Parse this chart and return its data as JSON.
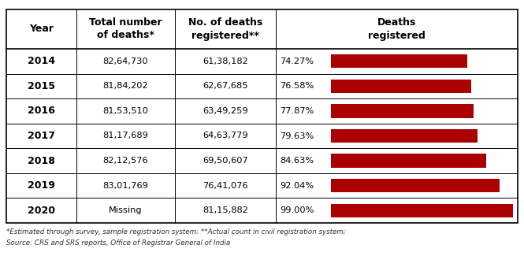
{
  "years": [
    "2014",
    "2015",
    "2016",
    "2017",
    "2018",
    "2019",
    "2020"
  ],
  "total_deaths": [
    "82,64,730",
    "81,84,202",
    "81,53,510",
    "81,17,689",
    "82,12,576",
    "83,01,769",
    "Missing"
  ],
  "deaths_registered": [
    "61,38,182",
    "62,67,685",
    "63,49,259",
    "64,63,779",
    "69,50,607",
    "76,41,076",
    "81,15,882"
  ],
  "percentages": [
    74.27,
    76.58,
    77.87,
    79.63,
    84.63,
    92.04,
    99.0
  ],
  "pct_labels": [
    "74.27%",
    "76.58%",
    "77.87%",
    "79.63%",
    "84.63%",
    "92.04%",
    "99.00%"
  ],
  "bar_color": "#AA0000",
  "bg_color": "#FFFFFF",
  "border_color": "#000000",
  "col_header_year": "Year",
  "col_header_total": "Total number\nof deaths*",
  "col_header_registered_no": "No. of deaths\nregistered**",
  "col_header_deaths_reg": "Deaths\nregistered",
  "footnote1": "*Estimated through survey, sample registration system; **Actual count in civil registration system;",
  "footnote2": "Source: CRS and SRS reports, Office of Registrar General of India"
}
